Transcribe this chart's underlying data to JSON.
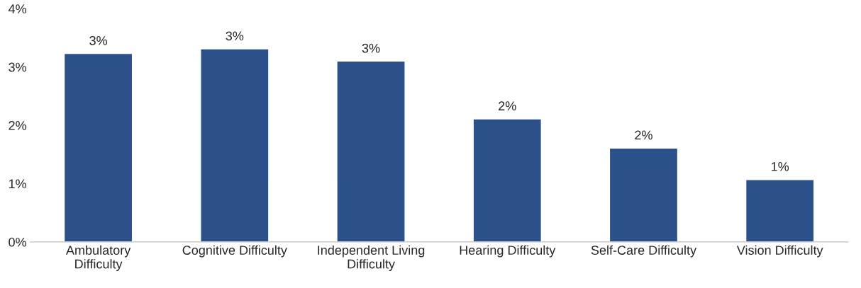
{
  "chart_data": {
    "type": "bar",
    "categories": [
      "Ambulatory\nDifficulty",
      "Cognitive Difficulty",
      "Independent Living\nDifficulty",
      "Hearing Difficulty",
      "Self-Care Difficulty",
      "Vision Difficulty"
    ],
    "values": [
      3.23,
      3.31,
      3.1,
      2.11,
      1.61,
      1.07
    ],
    "value_labels": [
      "3%",
      "3%",
      "3%",
      "2%",
      "2%",
      "1%"
    ],
    "color": "#2c5089",
    "ylim": [
      0,
      4
    ],
    "yticks": [
      {
        "value": 0,
        "label": "0%"
      },
      {
        "value": 1,
        "label": "1%"
      },
      {
        "value": 2,
        "label": "2%"
      },
      {
        "value": 3,
        "label": "3%"
      },
      {
        "value": 4,
        "label": "4%"
      }
    ],
    "grid": false
  }
}
